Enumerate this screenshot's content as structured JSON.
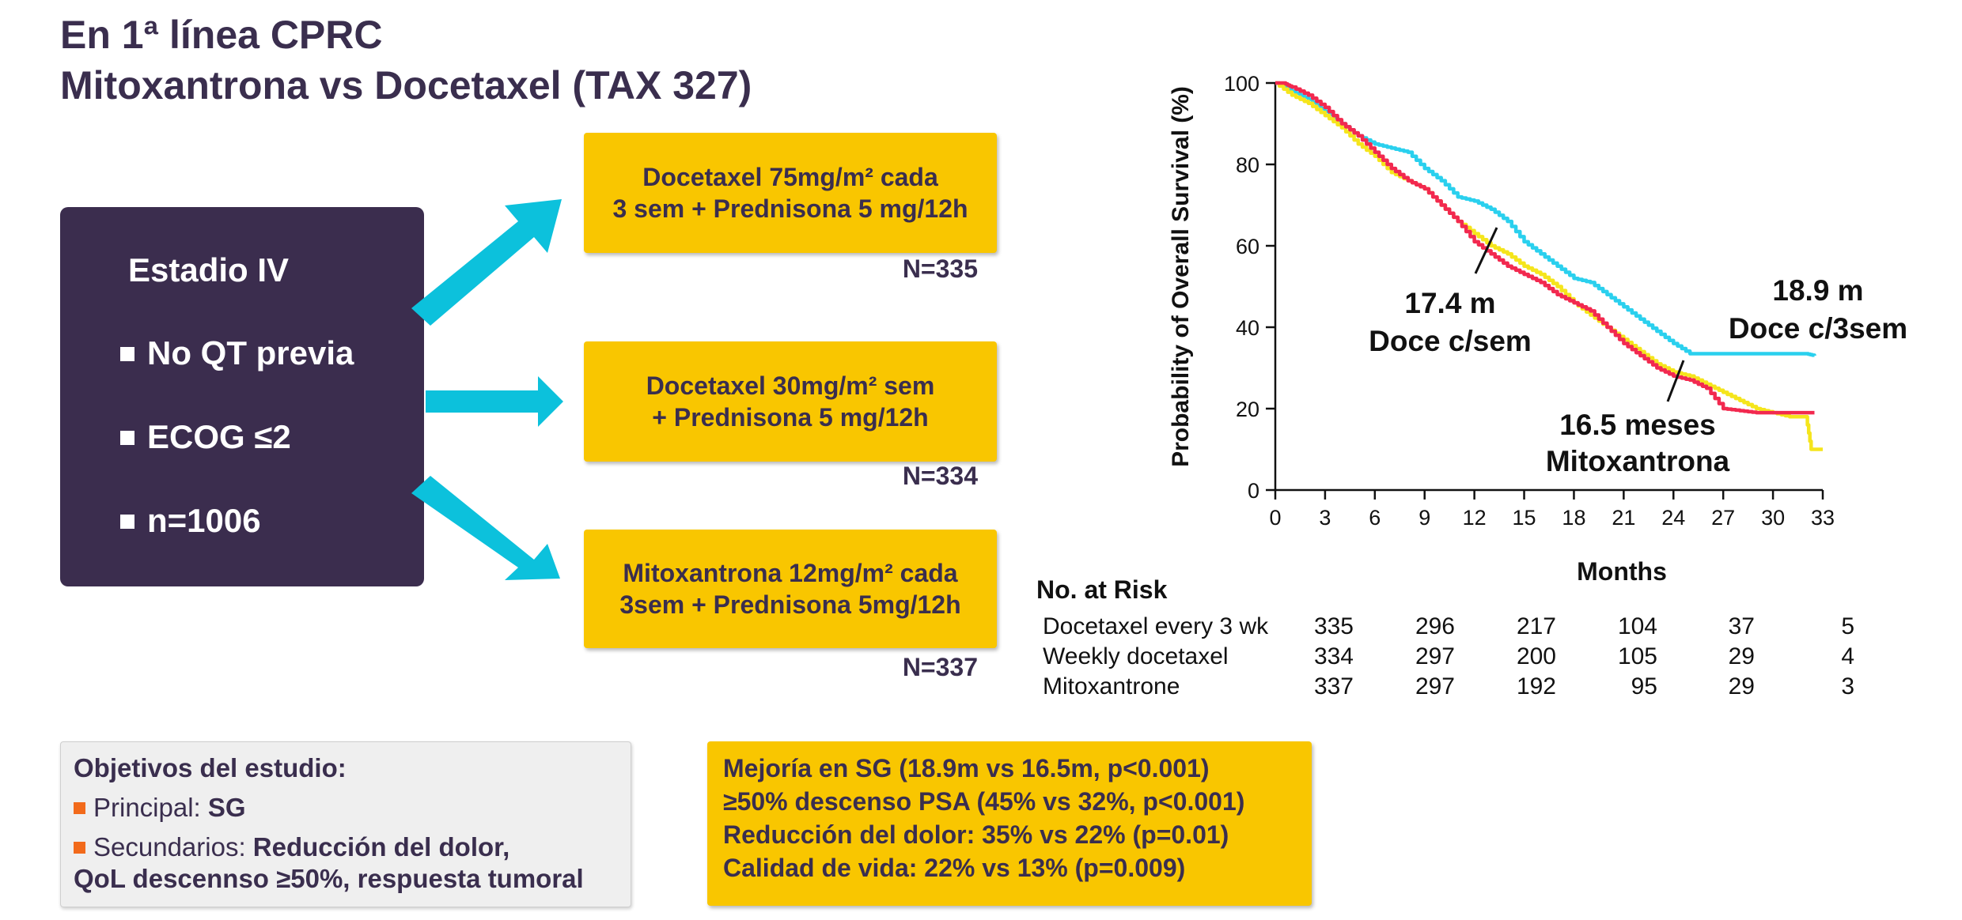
{
  "title": {
    "line1": "En 1ª línea CPRC",
    "line2": "Mitoxantrona vs Docetaxel (TAX 327)"
  },
  "stage_box": {
    "heading": "Estadio IV",
    "bullets": [
      "No QT previa",
      "ECOG ≤2",
      "n=1006"
    ]
  },
  "arms": [
    {
      "line1": "Docetaxel 75mg/m² cada",
      "line2": "3 sem + Prednisona 5 mg/12h",
      "n": "N=335"
    },
    {
      "line1": "Docetaxel 30mg/m² sem",
      "line2": "+ Prednisona 5 mg/12h",
      "n": "N=334"
    },
    {
      "line1": "Mitoxantrona 12mg/m² cada",
      "line2": "3sem + Prednisona 5mg/12h",
      "n": "N=337"
    }
  ],
  "colors": {
    "purple": "#3b2d4e",
    "yellow_box": "#f9c600",
    "arrow": "#0cc1dc",
    "orange_bullet": "#f26a1b",
    "series_q3w": "#2ad0ee",
    "series_weekly": "#f5e51c",
    "series_mito": "#f2294f"
  },
  "chart_data": {
    "type": "line",
    "title": "",
    "xlabel": "Months",
    "ylabel": "Probability of Overall Survival (%)",
    "xlim": [
      0,
      33
    ],
    "ylim": [
      0,
      100
    ],
    "x_ticks": [
      0,
      3,
      6,
      9,
      12,
      15,
      18,
      21,
      24,
      27,
      30,
      33
    ],
    "y_ticks": [
      0,
      20,
      40,
      60,
      80,
      100
    ],
    "grid": false,
    "series": [
      {
        "key": "q3w",
        "color": "#2ad0ee",
        "x": [
          0,
          1,
          2,
          3,
          4,
          5,
          6,
          7,
          8,
          9,
          10,
          11,
          12,
          13,
          14,
          15,
          16,
          17,
          18,
          19,
          20,
          21,
          22,
          23,
          24,
          25,
          26,
          27,
          28,
          29,
          30,
          31,
          32,
          32.5
        ],
        "y": [
          100,
          98,
          96,
          93,
          90,
          87,
          85,
          84,
          83,
          79,
          76,
          72,
          71,
          69,
          66,
          61,
          58,
          55,
          52,
          51,
          48,
          45,
          42,
          39,
          36,
          33.5,
          33.5,
          33.5,
          33.5,
          33.5,
          33.5,
          33.5,
          33.5,
          33
        ]
      },
      {
        "key": "weekly",
        "color": "#f5e51c",
        "x": [
          0,
          1,
          2,
          3,
          4,
          5,
          6,
          7,
          8,
          9,
          10,
          11,
          12,
          13,
          14,
          15,
          16,
          17,
          18,
          19,
          20,
          21,
          22,
          23,
          24,
          25,
          26,
          27,
          28,
          29,
          30,
          31,
          32,
          32.3,
          33
        ],
        "y": [
          100,
          97,
          95,
          92,
          89,
          85,
          82,
          78,
          76,
          74,
          70,
          66,
          63,
          60,
          58,
          55,
          53,
          50,
          46,
          43,
          40,
          37,
          34,
          31,
          29,
          28,
          26,
          24,
          22,
          20,
          19,
          18,
          18,
          10,
          10
        ]
      },
      {
        "key": "mito",
        "color": "#f2294f",
        "x": [
          0,
          0.5,
          1,
          2,
          3,
          4,
          5,
          6,
          7,
          8,
          9,
          10,
          11,
          12,
          13,
          14,
          15,
          16,
          17,
          18,
          19,
          20,
          21,
          22,
          23,
          24,
          25,
          26,
          27,
          28,
          29,
          30,
          31,
          32,
          32.5
        ],
        "y": [
          100,
          100,
          99,
          97,
          94,
          90,
          87,
          83,
          79,
          76,
          74,
          70,
          66,
          61,
          58,
          55,
          53,
          51,
          48,
          46,
          44,
          40,
          36,
          33,
          30,
          28,
          27,
          25,
          20,
          19.5,
          19,
          19,
          19,
          19,
          19
        ]
      }
    ],
    "annotations": [
      {
        "line1": "17.4 m",
        "line2": "Doce c/sem"
      },
      {
        "line1": "18.9 m",
        "line2": "Doce c/3sem"
      },
      {
        "line1": "16.5 meses",
        "line2": "Mitoxantrona"
      }
    ]
  },
  "risk_table": {
    "title": "No. at Risk",
    "rows": [
      {
        "label": "Docetaxel every 3 wk",
        "values": [
          "335",
          "296",
          "217",
          "104",
          "37",
          "5"
        ]
      },
      {
        "label": "Weekly docetaxel",
        "values": [
          "334",
          "297",
          "200",
          "105",
          "29",
          "4"
        ]
      },
      {
        "label": "Mitoxantrone",
        "values": [
          "337",
          "297",
          "192",
          "95",
          "29",
          "3"
        ]
      }
    ]
  },
  "objectives": {
    "title": "Objetivos del estudio:",
    "primary_label": "Principal: ",
    "primary_value": "SG",
    "secondary_label": "Secundarios: ",
    "secondary_value_1": "Reducción del dolor,",
    "secondary_value_2": "QoL descennso ≥50%, respuesta tumoral"
  },
  "results": [
    "Mejoría en SG (18.9m vs 16.5m, p<0.001)",
    "≥50% descenso PSA (45% vs 32%, p<0.001)",
    "Reducción del dolor: 35% vs 22% (p=0.01)",
    "Calidad de vida: 22% vs 13% (p=0.009)"
  ]
}
